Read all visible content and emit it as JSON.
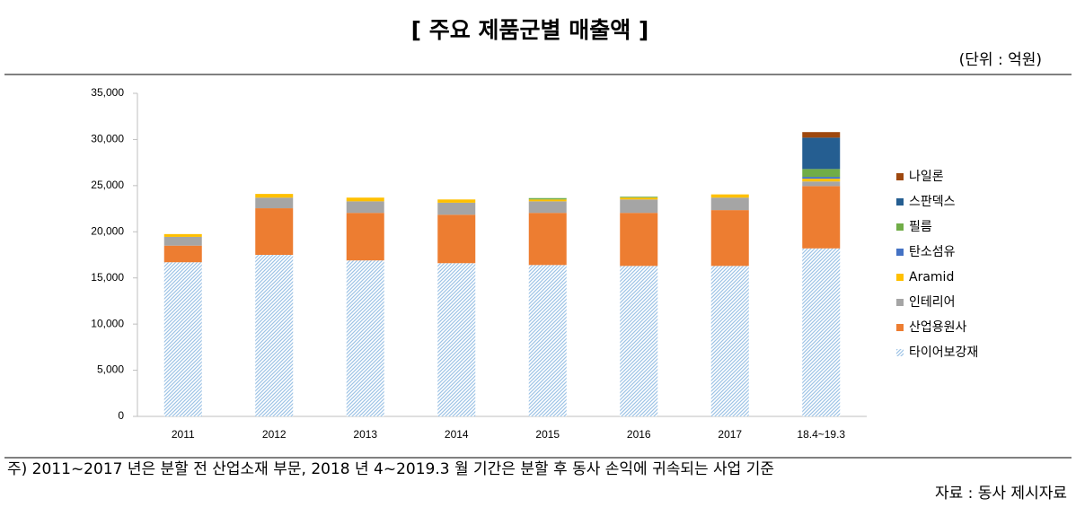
{
  "chart_data": {
    "type": "stacked_bar",
    "title": "[ 주요 제품군별 매출액 ]",
    "unit": "(단위 : 억원)",
    "note": "주) 2011~2017 년은 분할 전 산업소재 부문, 2018 년 4~2019.3 월 기간은 분할 후 동사 손익에 귀속되는 사업 기준",
    "source": "자료 : 동사 제시자료",
    "categories": [
      "2011",
      "2012",
      "2013",
      "2014",
      "2015",
      "2016",
      "2017",
      "18.4~19.3"
    ],
    "series": [
      {
        "name": "타이어보강재",
        "color": "#9dc3e6",
        "pattern": "hatch",
        "values": [
          16700,
          17500,
          16900,
          16600,
          16400,
          16300,
          16300,
          18200
        ]
      },
      {
        "name": "산업용원사",
        "color": "#ed7d31",
        "values": [
          1800,
          5050,
          5150,
          5250,
          5650,
          5750,
          6050,
          6750
        ]
      },
      {
        "name": "인테리어",
        "color": "#a5a5a5",
        "values": [
          950,
          1150,
          1250,
          1300,
          1250,
          1450,
          1350,
          500
        ]
      },
      {
        "name": "Aramid",
        "color": "#ffc000",
        "values": [
          300,
          400,
          400,
          350,
          200,
          200,
          350,
          300
        ]
      },
      {
        "name": "탄소섬유",
        "color": "#4472c4",
        "values": [
          0,
          0,
          0,
          0,
          0,
          0,
          0,
          200
        ]
      },
      {
        "name": "필름",
        "color": "#70ad47",
        "values": [
          0,
          0,
          0,
          0,
          150,
          100,
          0,
          850
        ]
      },
      {
        "name": "스판덱스",
        "color": "#255e91",
        "values": [
          0,
          0,
          0,
          0,
          0,
          0,
          0,
          3400
        ]
      },
      {
        "name": "나일론",
        "color": "#9e480e",
        "values": [
          0,
          0,
          0,
          0,
          0,
          0,
          0,
          600
        ]
      }
    ],
    "ylim": [
      0,
      35000
    ],
    "yticks": [
      0,
      {
        "value": 5000,
        "label": "5,000"
      },
      {
        "value": 10000,
        "label": "10,000"
      },
      {
        "value": 15000,
        "label": "15,000"
      },
      {
        "value": 20000,
        "label": "20,000"
      },
      {
        "value": 25000,
        "label": "25,000"
      },
      {
        "value": 30000,
        "label": "30,000"
      },
      {
        "value": 35000,
        "label": "35,000"
      }
    ],
    "legend": "right",
    "legend_order": "reverse"
  }
}
